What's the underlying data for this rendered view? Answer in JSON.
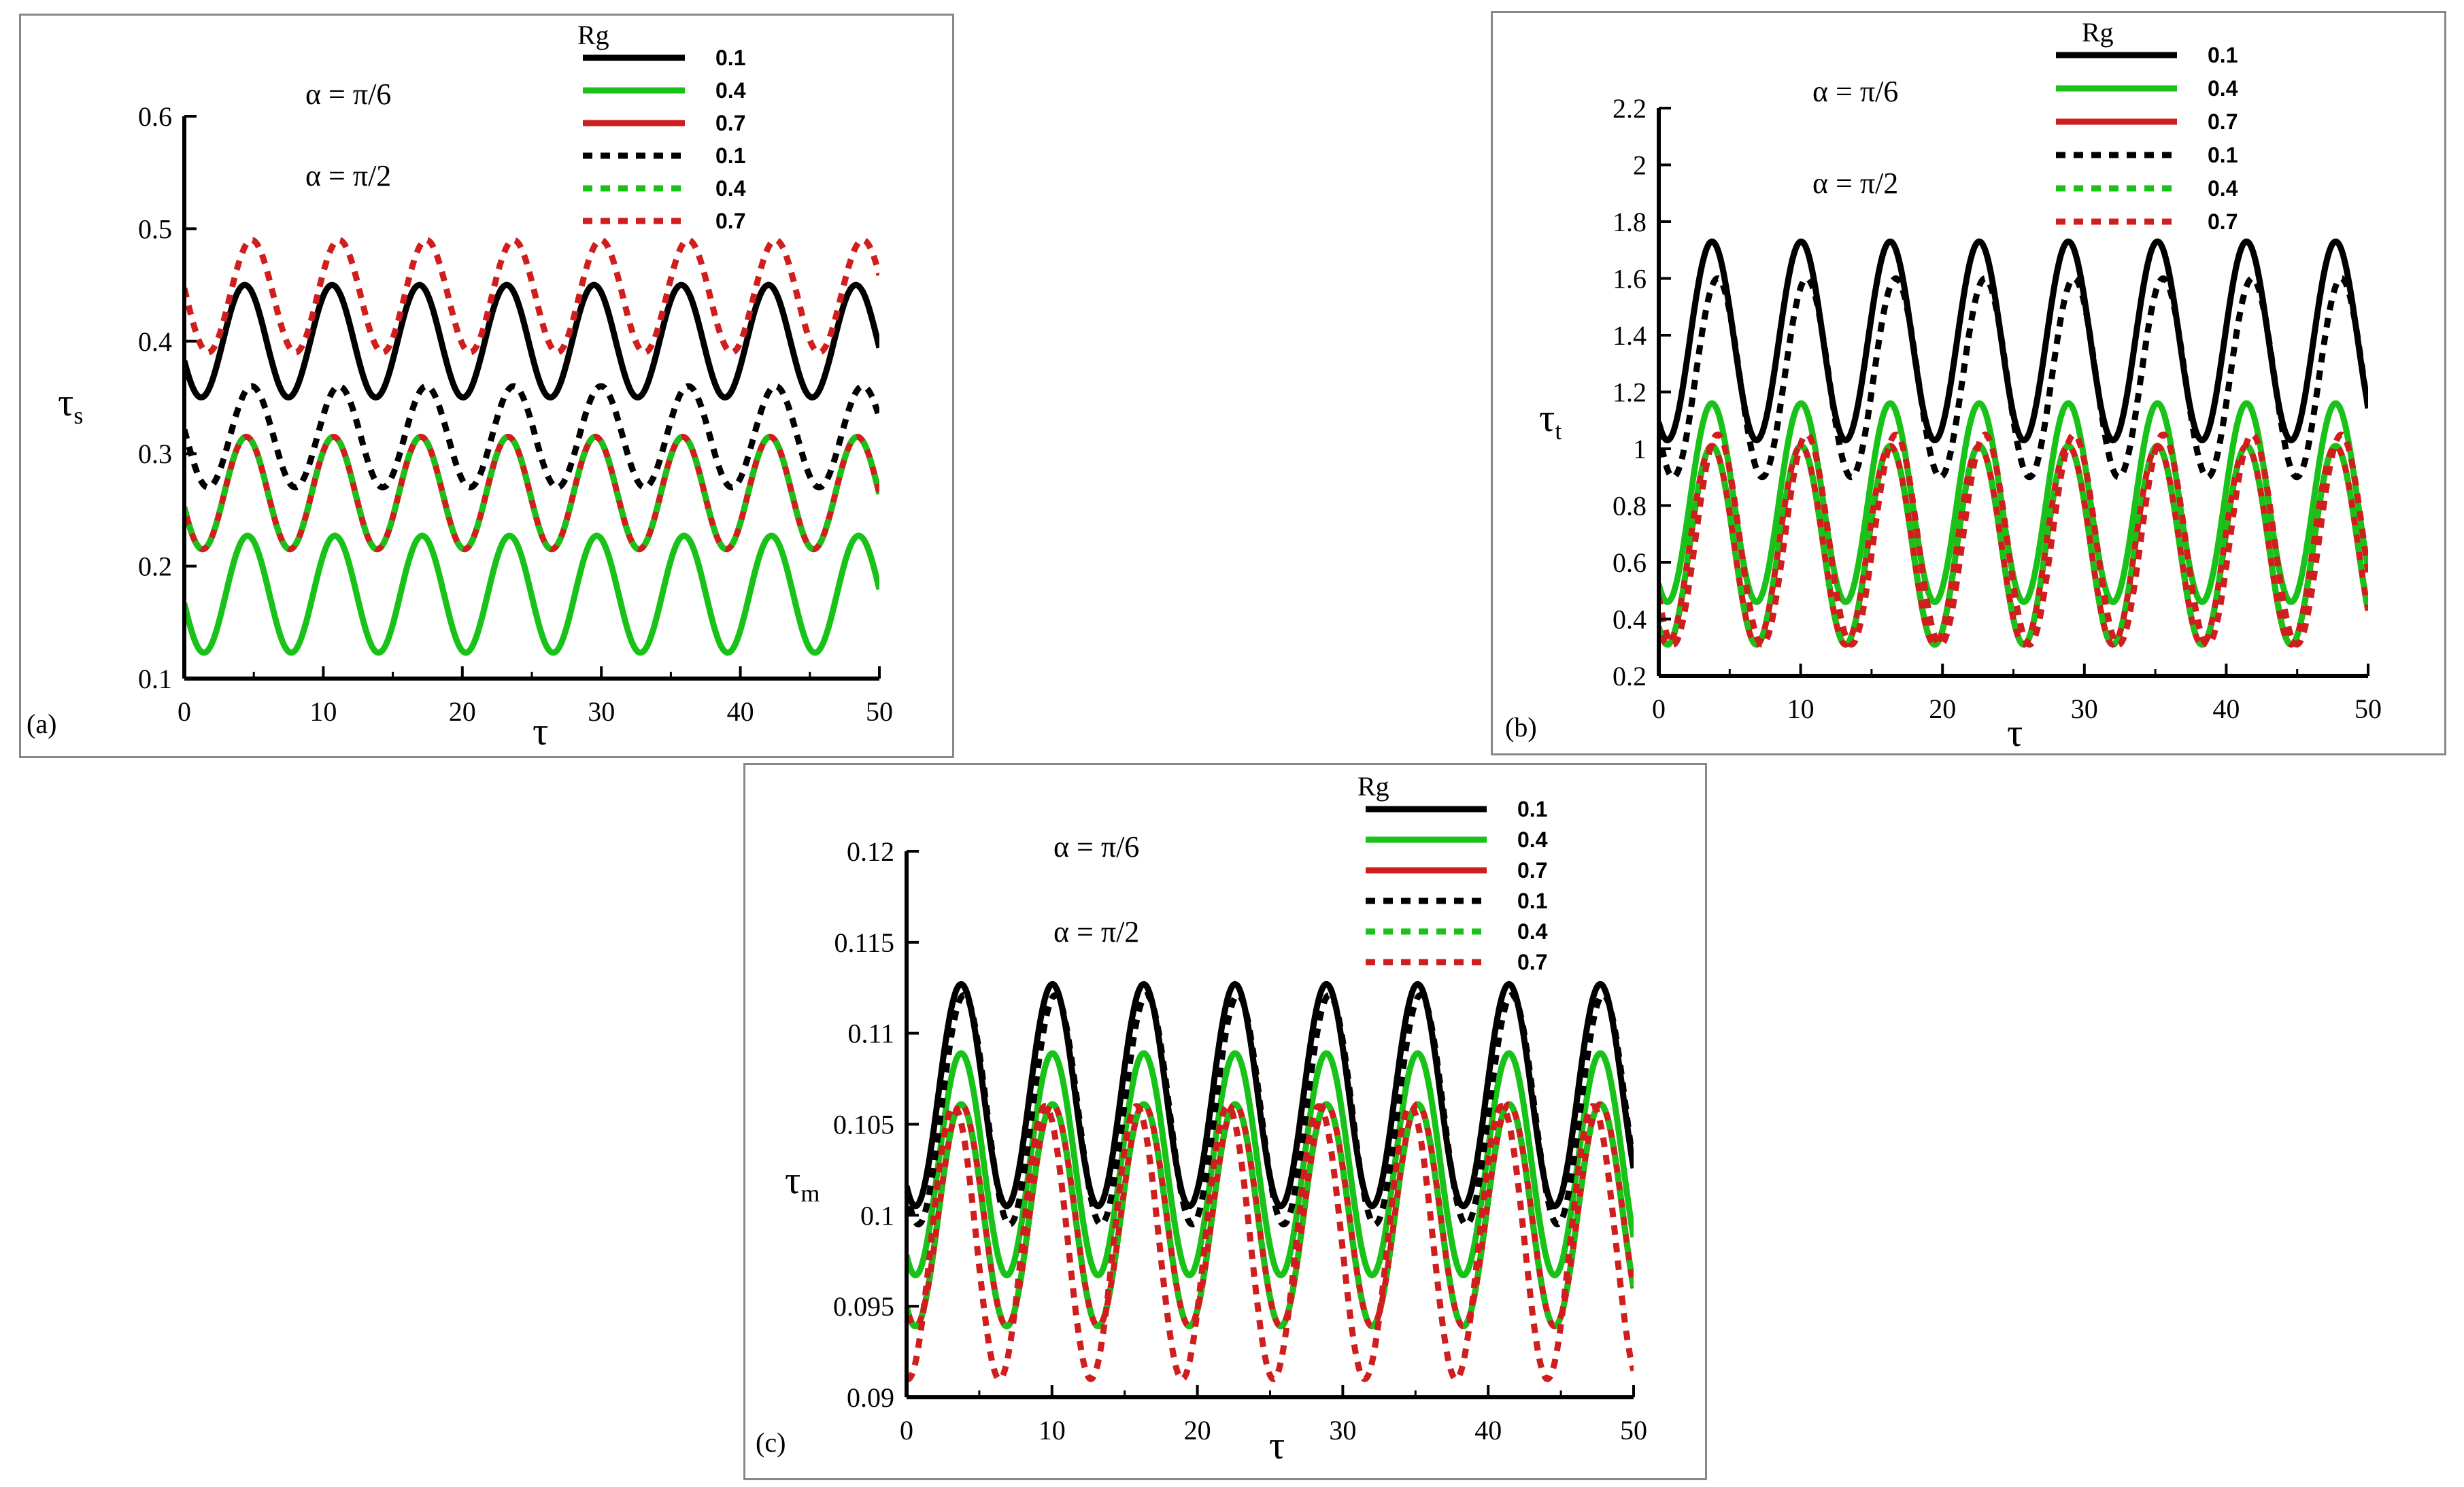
{
  "figure": {
    "colors": {
      "black": "#000000",
      "green": "#19c219",
      "red": "#d01e1e"
    }
  },
  "chart_data": [
    {
      "type": "line",
      "panel_label": "(a)",
      "xlabel": "τ",
      "ylabel_base": "τ",
      "ylabel_sub": "s",
      "xlim": [
        0,
        50
      ],
      "ylim": [
        0.1,
        0.6
      ],
      "xticks": [
        "0",
        "10",
        "20",
        "30",
        "40",
        "50"
      ],
      "yticks": [
        "0.1",
        "0.2",
        "0.3",
        "0.4",
        "0.5",
        "0.6"
      ],
      "annotations": [
        "α = π/6",
        "α = π/2"
      ],
      "legend": {
        "title": "Rg",
        "labels": [
          "0.1",
          "0.4",
          "0.7",
          "0.1",
          "0.4",
          "0.7"
        ]
      },
      "series": [
        {
          "name": "α = π/6, Rg = 0.1",
          "color": "black",
          "style": "solid",
          "mean": 0.4,
          "amp": 0.05,
          "period": 6.28,
          "phase": 3.5
        },
        {
          "name": "α = π/6, Rg = 0.4",
          "color": "green",
          "style": "solid",
          "mean": 0.175,
          "amp": 0.052,
          "period": 6.28,
          "phase": 3.3
        },
        {
          "name": "α = π/6, Rg = 0.7",
          "color": "red",
          "style": "solid",
          "mean": 0.265,
          "amp": 0.05,
          "period": 6.28,
          "phase": 3.4
        },
        {
          "name": "α = π/2, Rg = 0.1",
          "color": "black",
          "style": "dashed",
          "mean": 0.315,
          "amp": 0.045,
          "period": 6.28,
          "phase": 3.0
        },
        {
          "name": "α = π/2, Rg = 0.4",
          "color": "green",
          "style": "dashed",
          "mean": 0.265,
          "amp": 0.05,
          "period": 6.28,
          "phase": 3.4
        },
        {
          "name": "α = π/2, Rg = 0.7",
          "color": "red",
          "style": "dashed",
          "mean": 0.44,
          "amp": 0.05,
          "period": 6.28,
          "phase": 3.0
        }
      ]
    },
    {
      "type": "line",
      "panel_label": "(b)",
      "xlabel": "τ",
      "ylabel_base": "τ",
      "ylabel_sub": "t",
      "xlim": [
        0,
        50
      ],
      "ylim": [
        0.2,
        2.2
      ],
      "xticks": [
        "0",
        "10",
        "20",
        "30",
        "40",
        "50"
      ],
      "yticks": [
        "0.2",
        "0.4",
        "0.6",
        "0.8",
        "1",
        "1.2",
        "1.4",
        "1.6",
        "1.8",
        "2",
        "2.2"
      ],
      "annotations": [
        "α = π/6",
        "α = π/2"
      ],
      "legend": {
        "title": "Rg",
        "labels": [
          "0.1",
          "0.4",
          "0.7",
          "0.1",
          "0.4",
          "0.7"
        ]
      },
      "series": [
        {
          "name": "α = π/6, Rg = 0.1",
          "color": "black",
          "style": "solid",
          "mean": 1.38,
          "amp": 0.35,
          "period": 6.28,
          "phase": 4.1
        },
        {
          "name": "α = π/6, Rg = 0.4",
          "color": "green",
          "style": "solid",
          "mean": 0.81,
          "amp": 0.35,
          "period": 6.28,
          "phase": 4.1
        },
        {
          "name": "α = π/6, Rg = 0.7",
          "color": "red",
          "style": "solid",
          "mean": 0.66,
          "amp": 0.35,
          "period": 6.28,
          "phase": 4.1
        },
        {
          "name": "α = π/2, Rg = 0.1",
          "color": "black",
          "style": "dashed",
          "mean": 1.25,
          "amp": 0.35,
          "period": 6.28,
          "phase": 3.7
        },
        {
          "name": "α = π/2, Rg = 0.4",
          "color": "green",
          "style": "dashed",
          "mean": 0.66,
          "amp": 0.35,
          "period": 6.28,
          "phase": 4.1
        },
        {
          "name": "α = π/2, Rg = 0.7",
          "color": "red",
          "style": "dashed",
          "mean": 0.68,
          "amp": 0.37,
          "period": 6.28,
          "phase": 3.7
        }
      ]
    },
    {
      "type": "line",
      "panel_label": "(c)",
      "xlabel": "τ",
      "ylabel_base": "τ",
      "ylabel_sub": "m",
      "xlim": [
        0,
        50
      ],
      "ylim": [
        0.09,
        0.12
      ],
      "xticks": [
        "0",
        "10",
        "20",
        "30",
        "40",
        "50"
      ],
      "yticks": [
        "0.09",
        "0.095",
        "0.1",
        "0.105",
        "0.11",
        "0.115",
        "0.12"
      ],
      "annotations": [
        "α = π/6",
        "α = π/2"
      ],
      "legend": {
        "title": "Rg",
        "labels": [
          "0.1",
          "0.4",
          "0.7",
          "0.1",
          "0.4",
          "0.7"
        ]
      },
      "series": [
        {
          "name": "α = π/6, Rg = 0.1",
          "color": "black",
          "style": "solid",
          "mean": 0.1066,
          "amp": 0.0061,
          "period": 6.28,
          "phase": 4.1
        },
        {
          "name": "α = π/6, Rg = 0.4",
          "color": "green",
          "style": "solid",
          "mean": 0.1028,
          "amp": 0.0061,
          "period": 6.28,
          "phase": 4.1
        },
        {
          "name": "α = π/6, Rg = 0.7",
          "color": "red",
          "style": "solid",
          "mean": 0.1,
          "amp": 0.0061,
          "period": 6.28,
          "phase": 4.1
        },
        {
          "name": "α = π/2, Rg = 0.1",
          "color": "black",
          "style": "dashed",
          "mean": 0.1058,
          "amp": 0.0063,
          "period": 6.28,
          "phase": 3.9
        },
        {
          "name": "α = π/2, Rg = 0.4",
          "color": "green",
          "style": "dashed",
          "mean": 0.1,
          "amp": 0.0061,
          "period": 6.28,
          "phase": 4.1
        },
        {
          "name": "α = π/2, Rg = 0.7",
          "color": "red",
          "style": "dashed",
          "mean": 0.0985,
          "amp": 0.0075,
          "period": 6.28,
          "phase": 4.6
        }
      ]
    }
  ]
}
